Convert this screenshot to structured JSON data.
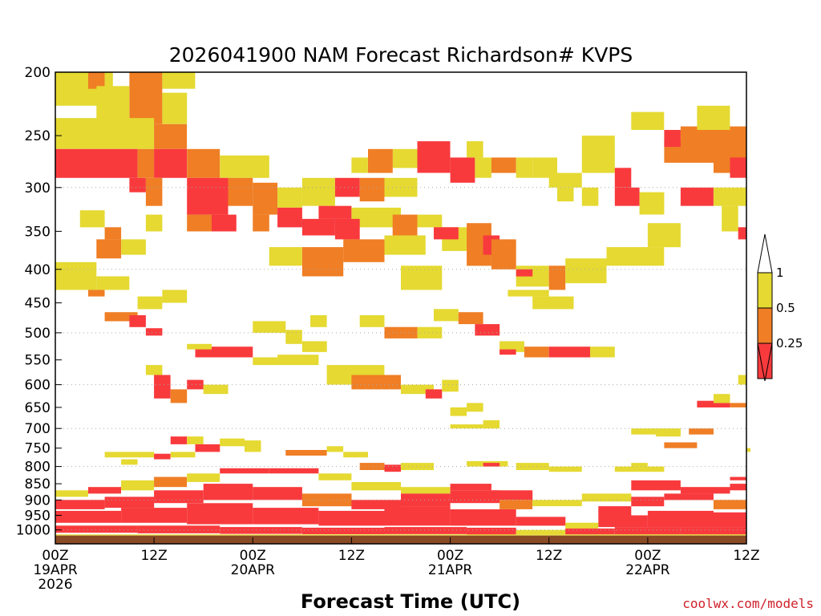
{
  "chart_data": {
    "type": "heatmap",
    "title": "2026041900 NAM Forecast Richardson# KVPS",
    "xlabel": "Forecast Time (UTC)",
    "ylabel": "",
    "credit": "coolwx.com/models",
    "y_scale": "log-pressure (hPa), inverted",
    "ylim": [
      1050,
      200
    ],
    "xlim_hours": [
      0,
      84
    ],
    "y_ticks": [
      "200",
      "250",
      "300",
      "350",
      "400",
      "450",
      "500",
      "550",
      "600",
      "650",
      "700",
      "750",
      "800",
      "850",
      "900",
      "950",
      "1000"
    ],
    "x_ticks": [
      {
        "hour": 0,
        "line1": "00Z",
        "line2": "19APR",
        "line3": "2026"
      },
      {
        "hour": 12,
        "line1": "12Z",
        "line2": "",
        "line3": ""
      },
      {
        "hour": 24,
        "line1": "00Z",
        "line2": "20APR",
        "line3": ""
      },
      {
        "hour": 36,
        "line1": "12Z",
        "line2": "",
        "line3": ""
      },
      {
        "hour": 48,
        "line1": "00Z",
        "line2": "21APR",
        "line3": ""
      },
      {
        "hour": 60,
        "line1": "12Z",
        "line2": "",
        "line3": ""
      },
      {
        "hour": 72,
        "line1": "00Z",
        "line2": "22APR",
        "line3": ""
      },
      {
        "hour": 84,
        "line1": "12Z",
        "line2": "",
        "line3": ""
      }
    ],
    "dotted_gridlines_hpa": [
      300,
      400,
      500,
      600,
      700,
      800,
      900,
      1000
    ],
    "ground_band_hpa": [
      1020,
      1050
    ],
    "legend": {
      "labels": [
        "1",
        "0.5",
        "0.25"
      ],
      "bins": [
        {
          "range": "0.5 - 1",
          "color": "#e5d932"
        },
        {
          "range": "0.25 - 0.5",
          "color": "#ef7e25"
        },
        {
          "range": "< 0.25",
          "color": "#f83a3d"
        }
      ],
      "top_arrow_color": "#ffffff",
      "bottom_arrow_color": "#f83a3d"
    },
    "colors": {
      "yellow": "#e5d932",
      "orange": "#ef7e25",
      "red": "#f83a3d",
      "ground": "#8b4a26",
      "grid": "#aaaaaa"
    },
    "series_note": "Each region is [hour_start, hour_end, pressure_top_hPa, pressure_bottom_hPa, category]; category: y = 0.5-1, o = 0.25-0.5, r = <0.25",
    "regions": [
      [
        0,
        7,
        200,
        225,
        "y"
      ],
      [
        4,
        6,
        200,
        212,
        "o"
      ],
      [
        9,
        13,
        200,
        240,
        "o"
      ],
      [
        13,
        17,
        200,
        212,
        "y"
      ],
      [
        5,
        9,
        210,
        240,
        "y"
      ],
      [
        0,
        12,
        235,
        262,
        "y"
      ],
      [
        0,
        10,
        262,
        290,
        "r"
      ],
      [
        10,
        12,
        262,
        290,
        "o"
      ],
      [
        12,
        16,
        240,
        262,
        "o"
      ],
      [
        12,
        16,
        262,
        290,
        "r"
      ],
      [
        16,
        20,
        262,
        290,
        "o"
      ],
      [
        20,
        26,
        268,
        290,
        "y"
      ],
      [
        13,
        16,
        215,
        240,
        "y"
      ],
      [
        9,
        11,
        290,
        305,
        "r"
      ],
      [
        11,
        13,
        290,
        320,
        "o"
      ],
      [
        16,
        21,
        290,
        330,
        "r"
      ],
      [
        21,
        24,
        290,
        320,
        "o"
      ],
      [
        24,
        27,
        295,
        330,
        "o"
      ],
      [
        27,
        30,
        300,
        322,
        "y"
      ],
      [
        30,
        34,
        290,
        320,
        "y"
      ],
      [
        34,
        37,
        290,
        310,
        "r"
      ],
      [
        37,
        40,
        290,
        315,
        "o"
      ],
      [
        40,
        44,
        290,
        310,
        "y"
      ],
      [
        27,
        30,
        322,
        345,
        "r"
      ],
      [
        30,
        34,
        335,
        355,
        "r"
      ],
      [
        24,
        26,
        330,
        350,
        "o"
      ],
      [
        19,
        22,
        330,
        350,
        "r"
      ],
      [
        16,
        19,
        330,
        350,
        "o"
      ],
      [
        32,
        36,
        320,
        335,
        "r"
      ],
      [
        36,
        42,
        322,
        345,
        "y"
      ],
      [
        41,
        44,
        330,
        355,
        "o"
      ],
      [
        44,
        47,
        330,
        345,
        "y"
      ],
      [
        3,
        6,
        325,
        345,
        "y"
      ],
      [
        6,
        8,
        345,
        360,
        "o"
      ],
      [
        5,
        8,
        360,
        385,
        "o"
      ],
      [
        8,
        11,
        360,
        380,
        "y"
      ],
      [
        11,
        13,
        330,
        350,
        "y"
      ],
      [
        0,
        5,
        390,
        430,
        "y"
      ],
      [
        5,
        9,
        410,
        430,
        "y"
      ],
      [
        4,
        6,
        430,
        440,
        "o"
      ],
      [
        10,
        13,
        440,
        460,
        "y"
      ],
      [
        13,
        16,
        430,
        450,
        "y"
      ],
      [
        6,
        10,
        465,
        480,
        "o"
      ],
      [
        9,
        11,
        470,
        490,
        "r"
      ],
      [
        11,
        13,
        492,
        505,
        "r"
      ],
      [
        26,
        30,
        370,
        395,
        "y"
      ],
      [
        30,
        35,
        370,
        410,
        "o"
      ],
      [
        35,
        40,
        360,
        390,
        "o"
      ],
      [
        40,
        45,
        355,
        380,
        "y"
      ],
      [
        34,
        37,
        335,
        360,
        "r"
      ],
      [
        42,
        47,
        395,
        430,
        "y"
      ],
      [
        47,
        52,
        345,
        375,
        "y"
      ],
      [
        46,
        49,
        345,
        360,
        "r"
      ],
      [
        50,
        53,
        340,
        395,
        "o"
      ],
      [
        52,
        54,
        355,
        380,
        "r"
      ],
      [
        53,
        56,
        360,
        400,
        "o"
      ],
      [
        56,
        60,
        395,
        425,
        "y"
      ],
      [
        60,
        62,
        395,
        430,
        "o"
      ],
      [
        56,
        58,
        400,
        410,
        "r"
      ],
      [
        58,
        63,
        440,
        460,
        "y"
      ],
      [
        55,
        60,
        430,
        440,
        "y"
      ],
      [
        62,
        67,
        385,
        420,
        "y"
      ],
      [
        67,
        74,
        370,
        395,
        "y"
      ],
      [
        72,
        76,
        340,
        370,
        "y"
      ],
      [
        64,
        68,
        250,
        285,
        "y"
      ],
      [
        68,
        71,
        300,
        320,
        "r"
      ],
      [
        71,
        74,
        305,
        330,
        "y"
      ],
      [
        74,
        80,
        255,
        275,
        "o"
      ],
      [
        76,
        84,
        242,
        260,
        "o"
      ],
      [
        80,
        84,
        260,
        285,
        "o"
      ],
      [
        82,
        84,
        270,
        290,
        "r"
      ],
      [
        68,
        70,
        280,
        300,
        "r"
      ],
      [
        76,
        80,
        300,
        320,
        "r"
      ],
      [
        74,
        76,
        245,
        260,
        "r"
      ],
      [
        70,
        74,
        230,
        245,
        "y"
      ],
      [
        78,
        82,
        225,
        245,
        "y"
      ],
      [
        80,
        84,
        300,
        320,
        "y"
      ],
      [
        81,
        83,
        320,
        350,
        "y"
      ],
      [
        83,
        84,
        345,
        360,
        "r"
      ],
      [
        44,
        48,
        255,
        285,
        "r"
      ],
      [
        41,
        44,
        262,
        280,
        "y"
      ],
      [
        38,
        41,
        262,
        285,
        "o"
      ],
      [
        36,
        38,
        270,
        285,
        "y"
      ],
      [
        48,
        51,
        270,
        295,
        "r"
      ],
      [
        51,
        53,
        270,
        290,
        "y"
      ],
      [
        53,
        56,
        270,
        285,
        "o"
      ],
      [
        56,
        58,
        270,
        290,
        "y"
      ],
      [
        58,
        61,
        270,
        290,
        "y"
      ],
      [
        50,
        52,
        255,
        270,
        "y"
      ],
      [
        60,
        64,
        285,
        300,
        "y"
      ],
      [
        61,
        63,
        300,
        315,
        "y"
      ],
      [
        64,
        66,
        300,
        320,
        "y"
      ],
      [
        17,
        24,
        525,
        545,
        "r"
      ],
      [
        16,
        19,
        520,
        530,
        "y"
      ],
      [
        24,
        27,
        545,
        560,
        "y"
      ],
      [
        27,
        32,
        540,
        560,
        "y"
      ],
      [
        30,
        33,
        515,
        535,
        "y"
      ],
      [
        24,
        28,
        480,
        500,
        "y"
      ],
      [
        28,
        30,
        495,
        520,
        "y"
      ],
      [
        31,
        33,
        470,
        490,
        "y"
      ],
      [
        40,
        44,
        490,
        510,
        "o"
      ],
      [
        44,
        47,
        490,
        510,
        "y"
      ],
      [
        37,
        40,
        470,
        490,
        "y"
      ],
      [
        46,
        49,
        460,
        480,
        "y"
      ],
      [
        49,
        52,
        465,
        485,
        "o"
      ],
      [
        51,
        54,
        485,
        505,
        "r"
      ],
      [
        54,
        57,
        515,
        535,
        "y"
      ],
      [
        57,
        60,
        525,
        545,
        "o"
      ],
      [
        60,
        65,
        525,
        545,
        "r"
      ],
      [
        65,
        68,
        525,
        545,
        "y"
      ],
      [
        54,
        56,
        530,
        540,
        "r"
      ],
      [
        33,
        40,
        560,
        600,
        "y"
      ],
      [
        36,
        42,
        580,
        610,
        "o"
      ],
      [
        42,
        46,
        600,
        620,
        "y"
      ],
      [
        45,
        47,
        610,
        630,
        "r"
      ],
      [
        47,
        49,
        590,
        615,
        "y"
      ],
      [
        12,
        14,
        580,
        630,
        "r"
      ],
      [
        14,
        16,
        610,
        640,
        "o"
      ],
      [
        16,
        18,
        590,
        610,
        "r"
      ],
      [
        18,
        21,
        600,
        620,
        "y"
      ],
      [
        11,
        13,
        560,
        580,
        "y"
      ],
      [
        48,
        50,
        650,
        670,
        "y"
      ],
      [
        50,
        52,
        640,
        660,
        "y"
      ],
      [
        48,
        52,
        690,
        700,
        "y"
      ],
      [
        52,
        54,
        680,
        700,
        "y"
      ],
      [
        78,
        82,
        635,
        650,
        "r"
      ],
      [
        82,
        84,
        640,
        650,
        "o"
      ],
      [
        83,
        84,
        580,
        600,
        "y"
      ],
      [
        80,
        82,
        620,
        640,
        "y"
      ],
      [
        14,
        16,
        720,
        740,
        "r"
      ],
      [
        16,
        18,
        720,
        740,
        "y"
      ],
      [
        17,
        20,
        740,
        760,
        "r"
      ],
      [
        20,
        23,
        725,
        745,
        "y"
      ],
      [
        23,
        25,
        730,
        760,
        "y"
      ],
      [
        6,
        12,
        760,
        775,
        "y"
      ],
      [
        12,
        14,
        765,
        780,
        "r"
      ],
      [
        8,
        10,
        780,
        795,
        "y"
      ],
      [
        14,
        17,
        760,
        775,
        "y"
      ],
      [
        28,
        33,
        755,
        770,
        "o"
      ],
      [
        33,
        35,
        745,
        760,
        "y"
      ],
      [
        35,
        38,
        760,
        775,
        "y"
      ],
      [
        37,
        40,
        790,
        810,
        "o"
      ],
      [
        40,
        42,
        795,
        815,
        "r"
      ],
      [
        42,
        46,
        790,
        810,
        "y"
      ],
      [
        50,
        55,
        785,
        800,
        "y"
      ],
      [
        52,
        54,
        790,
        800,
        "r"
      ],
      [
        56,
        60,
        790,
        810,
        "y"
      ],
      [
        60,
        64,
        800,
        815,
        "y"
      ],
      [
        68,
        74,
        800,
        815,
        "y"
      ],
      [
        70,
        72,
        790,
        800,
        "y"
      ],
      [
        74,
        78,
        735,
        750,
        "o"
      ],
      [
        70,
        73,
        700,
        715,
        "y"
      ],
      [
        77,
        80,
        700,
        715,
        "o"
      ],
      [
        73,
        76,
        700,
        720,
        "y"
      ],
      [
        84,
        84,
        750,
        760,
        "y"
      ],
      [
        82,
        84,
        830,
        840,
        "r"
      ],
      [
        0,
        4,
        870,
        890,
        "y"
      ],
      [
        4,
        8,
        860,
        880,
        "r"
      ],
      [
        8,
        12,
        840,
        870,
        "y"
      ],
      [
        12,
        16,
        830,
        860,
        "o"
      ],
      [
        16,
        20,
        820,
        845,
        "y"
      ],
      [
        20,
        26,
        805,
        820,
        "r"
      ],
      [
        26,
        32,
        805,
        820,
        "r"
      ],
      [
        32,
        36,
        820,
        840,
        "y"
      ],
      [
        36,
        42,
        845,
        870,
        "y"
      ],
      [
        42,
        48,
        860,
        880,
        "y"
      ],
      [
        48,
        53,
        850,
        870,
        "r"
      ],
      [
        53,
        58,
        870,
        900,
        "r"
      ],
      [
        58,
        64,
        900,
        920,
        "y"
      ],
      [
        64,
        70,
        880,
        905,
        "y"
      ],
      [
        70,
        76,
        840,
        870,
        "r"
      ],
      [
        76,
        82,
        860,
        880,
        "r"
      ],
      [
        82,
        84,
        850,
        870,
        "r"
      ],
      [
        0,
        6,
        900,
        930,
        "r"
      ],
      [
        6,
        12,
        890,
        925,
        "r"
      ],
      [
        12,
        18,
        870,
        910,
        "r"
      ],
      [
        18,
        24,
        850,
        900,
        "r"
      ],
      [
        24,
        30,
        860,
        900,
        "r"
      ],
      [
        30,
        36,
        880,
        920,
        "o"
      ],
      [
        36,
        42,
        900,
        930,
        "r"
      ],
      [
        42,
        48,
        880,
        920,
        "r"
      ],
      [
        48,
        54,
        870,
        910,
        "r"
      ],
      [
        54,
        58,
        900,
        930,
        "o"
      ],
      [
        66,
        70,
        920,
        950,
        "r"
      ],
      [
        70,
        74,
        890,
        920,
        "r"
      ],
      [
        74,
        80,
        880,
        900,
        "r"
      ],
      [
        80,
        84,
        900,
        930,
        "o"
      ],
      [
        0,
        8,
        935,
        975,
        "r"
      ],
      [
        8,
        16,
        925,
        975,
        "r"
      ],
      [
        16,
        24,
        910,
        980,
        "r"
      ],
      [
        24,
        32,
        925,
        980,
        "r"
      ],
      [
        32,
        40,
        935,
        985,
        "r"
      ],
      [
        40,
        48,
        920,
        985,
        "r"
      ],
      [
        48,
        56,
        930,
        985,
        "r"
      ],
      [
        56,
        62,
        955,
        985,
        "r"
      ],
      [
        62,
        66,
        975,
        995,
        "y"
      ],
      [
        66,
        72,
        950,
        990,
        "r"
      ],
      [
        72,
        80,
        935,
        990,
        "r"
      ],
      [
        80,
        84,
        940,
        990,
        "r"
      ],
      [
        0,
        10,
        985,
        1010,
        "r"
      ],
      [
        10,
        20,
        985,
        1012,
        "r"
      ],
      [
        20,
        30,
        990,
        1014,
        "r"
      ],
      [
        30,
        40,
        992,
        1015,
        "r"
      ],
      [
        40,
        50,
        990,
        1015,
        "r"
      ],
      [
        50,
        56,
        992,
        1016,
        "r"
      ],
      [
        56,
        62,
        1000,
        1016,
        "y"
      ],
      [
        62,
        68,
        995,
        1016,
        "r"
      ],
      [
        68,
        76,
        990,
        1016,
        "r"
      ],
      [
        76,
        84,
        990,
        1016,
        "r"
      ],
      [
        0,
        84,
        1016,
        1020,
        "y"
      ]
    ]
  }
}
